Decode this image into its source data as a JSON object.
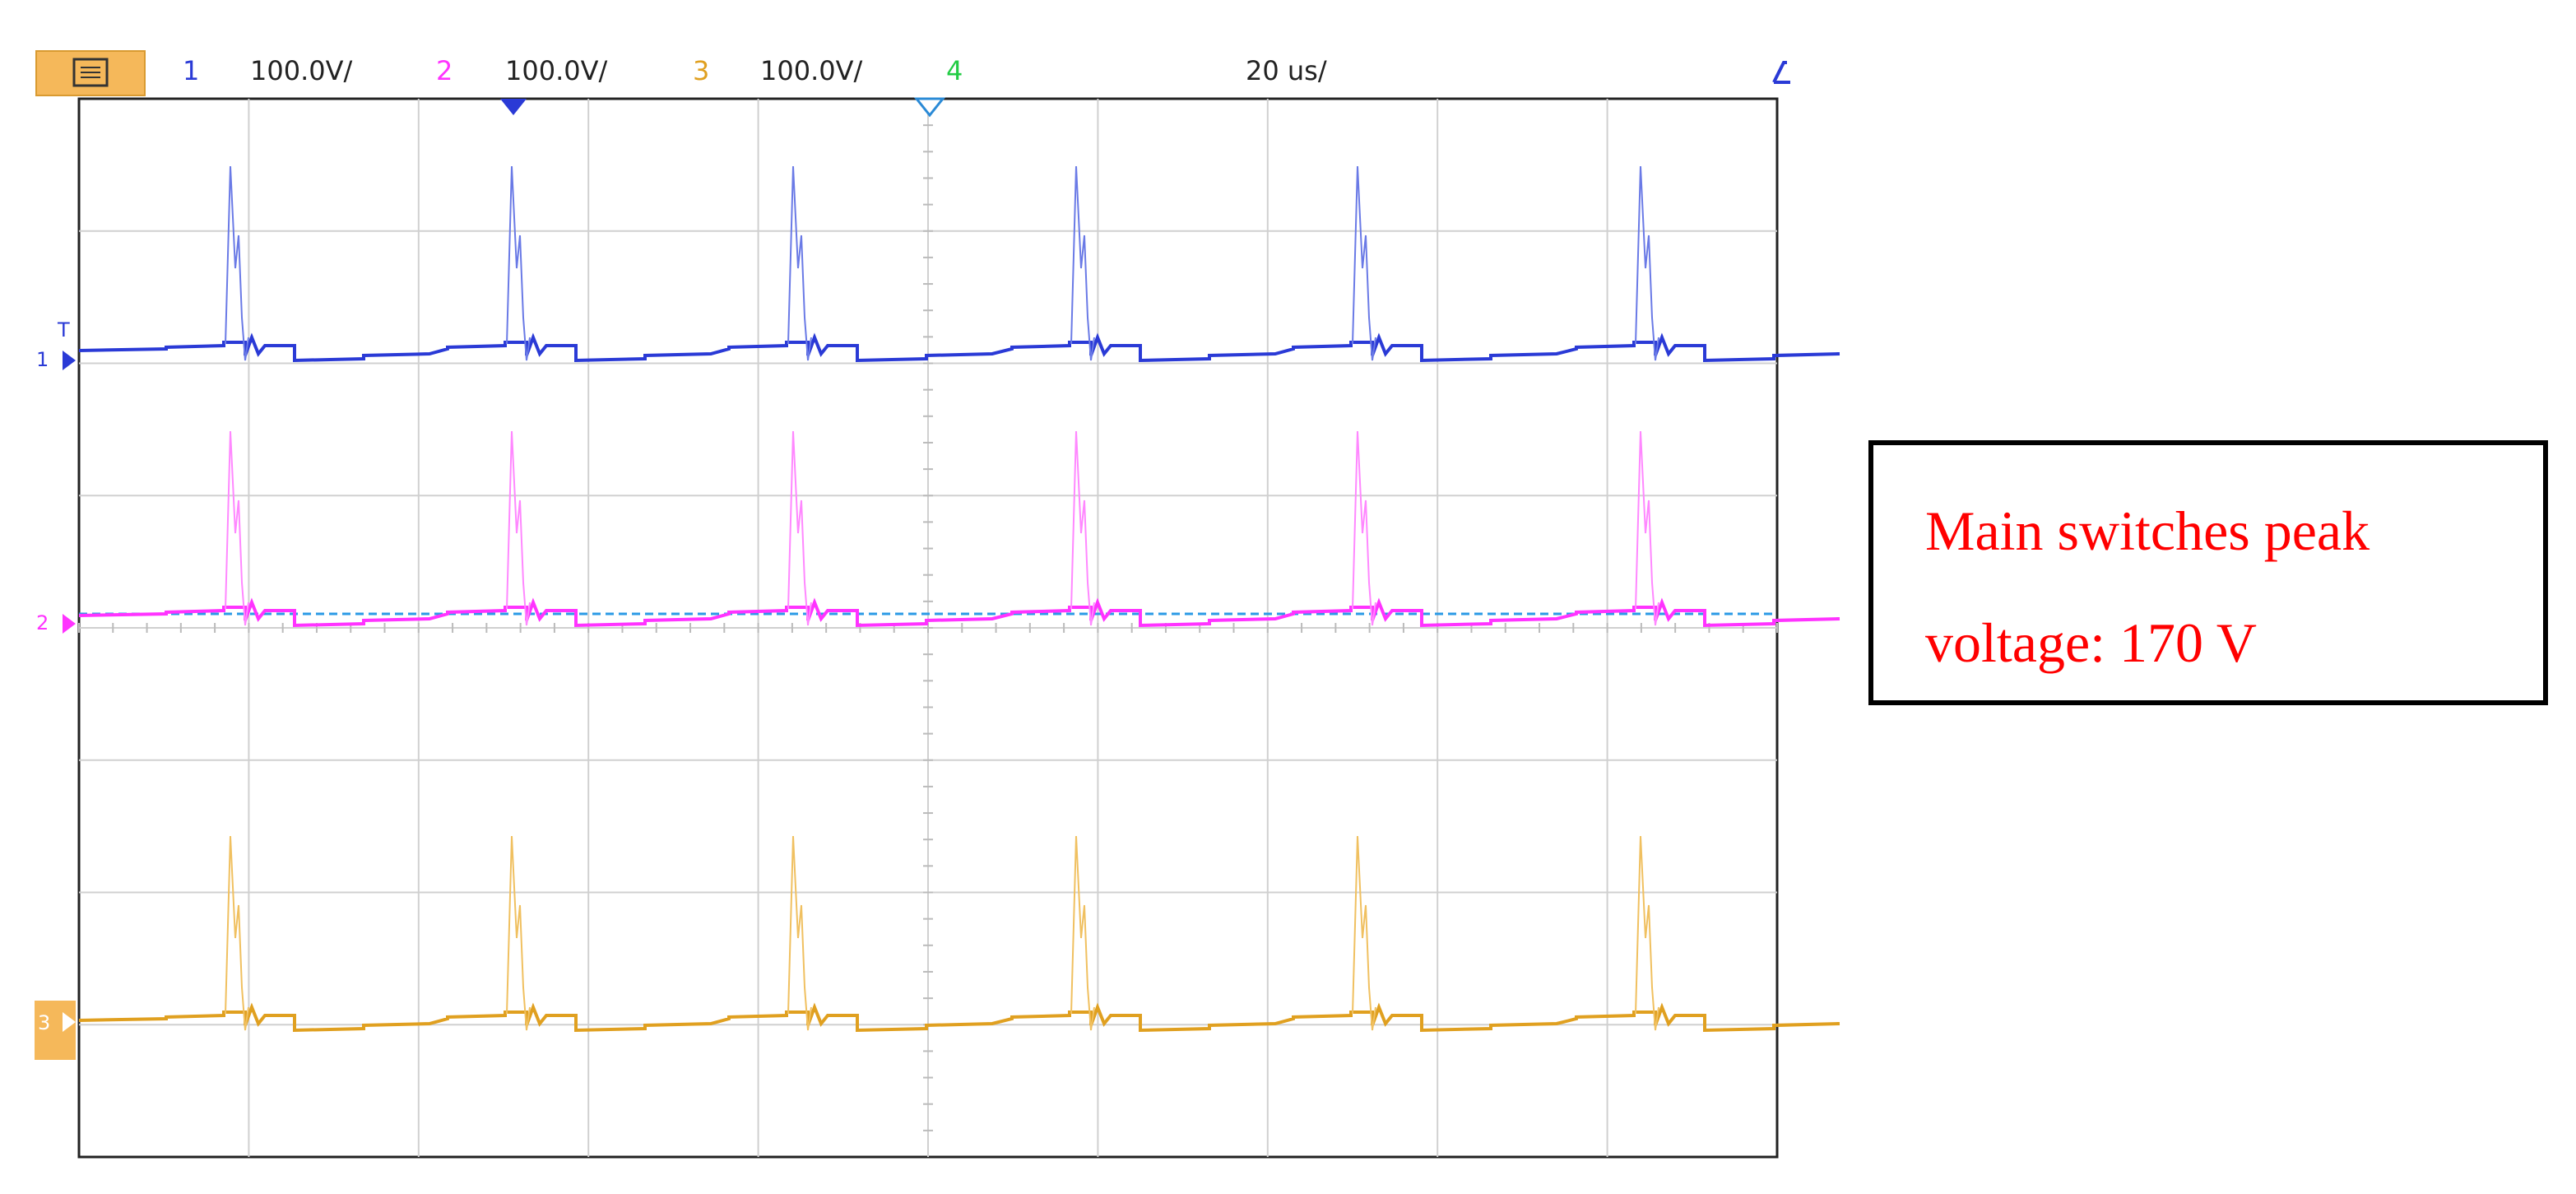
{
  "header": {
    "channels": [
      {
        "number": "1",
        "scale": "100.0V/"
      },
      {
        "number": "2",
        "scale": "100.0V/"
      },
      {
        "number": "3",
        "scale": "100.0V/"
      },
      {
        "number": "4"
      }
    ],
    "timebase": "20 us/"
  },
  "ground_markers": [
    "1",
    "2",
    "3"
  ],
  "trigger_marker": "T",
  "annotation": {
    "lines": [
      "Main switches peak",
      "voltage: 170 V"
    ]
  }
}
